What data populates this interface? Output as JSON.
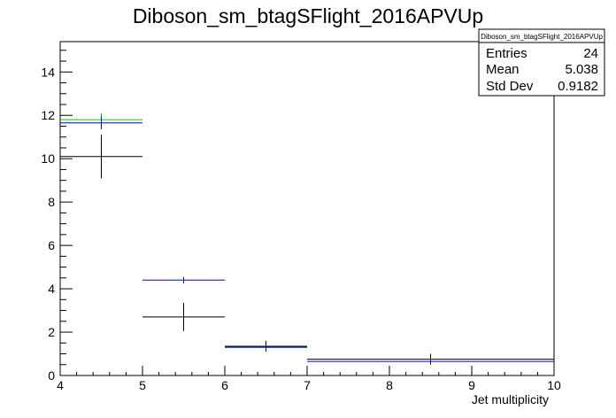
{
  "chart_data": {
    "type": "histogram",
    "title": "Diboson_sm_btagSFlight_2016APVUp",
    "xlabel": "Jet multiplicity",
    "ylabel": "",
    "xlim": [
      4,
      10
    ],
    "ylim": [
      0,
      15.4
    ],
    "x_ticks": [
      4,
      5,
      6,
      7,
      8,
      9,
      10
    ],
    "y_ticks": [
      0,
      2,
      4,
      6,
      8,
      10,
      12,
      14
    ],
    "grid": false,
    "stats_box": {
      "title": "Diboson_sm_btagSFlight_2016APVUp",
      "rows": [
        {
          "label": "Entries",
          "value": "24"
        },
        {
          "label": "Mean",
          "value": "5.038"
        },
        {
          "label": "Std Dev",
          "value": "0.9182"
        }
      ]
    },
    "series": [
      {
        "color": "#000000",
        "bins": [
          {
            "x0": 4,
            "x1": 5,
            "y": 10.1,
            "err": 1.0
          },
          {
            "x0": 5,
            "x1": 6,
            "y": 2.7,
            "err": 0.65
          },
          {
            "x0": 6,
            "x1": 7,
            "y": 1.35,
            "err": 0.25
          },
          {
            "x0": 7,
            "x1": 10,
            "y": 0.75,
            "err": 0.25
          }
        ]
      },
      {
        "color": "#00cc00",
        "bins": [
          {
            "x0": 4,
            "x1": 5,
            "y": 11.8,
            "err": 0.3
          },
          {
            "x0": 6,
            "x1": 7,
            "y": 1.3,
            "err": 0.1
          }
        ]
      },
      {
        "color": "#0000cc",
        "bins": [
          {
            "x0": 4,
            "x1": 5,
            "y": 11.65,
            "err": 0.3
          },
          {
            "x0": 5,
            "x1": 6,
            "y": 4.4,
            "err": 0.15
          },
          {
            "x0": 6,
            "x1": 7,
            "y": 1.3,
            "err": 0.1
          },
          {
            "x0": 7,
            "x1": 10,
            "y": 0.65,
            "err": 0.08
          }
        ]
      }
    ]
  }
}
